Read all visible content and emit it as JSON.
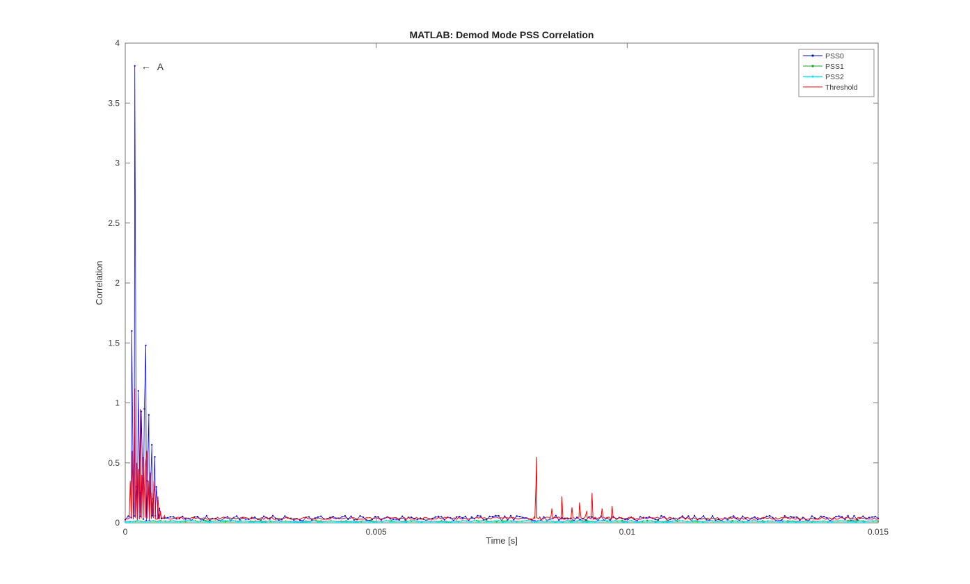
{
  "window": {
    "background": "#ffffff"
  },
  "chart_data": {
    "type": "line",
    "title": "MATLAB: Demod Mode PSS Correlation",
    "xlabel": "Time [s]",
    "ylabel": "Correlation",
    "xlim": [
      0,
      0.015
    ],
    "ylim": [
      0,
      4
    ],
    "xticks": [
      0,
      0.005,
      0.01,
      0.015
    ],
    "xtick_labels": [
      "0",
      "0.005",
      "0.01",
      "0.015"
    ],
    "yticks": [
      0,
      0.5,
      1,
      1.5,
      2,
      2.5,
      3,
      3.5,
      4
    ],
    "ytick_labels": [
      "0",
      "0.5",
      "1",
      "1.5",
      "2",
      "2.5",
      "3",
      "3.5",
      "4"
    ],
    "grid": false,
    "legend_position": "top-right",
    "colors": {
      "axis": "#767676",
      "tick_label": "#3b3b3b",
      "title": "#222222",
      "annotation": "#333333",
      "legend_border": "#8c8c8c"
    },
    "annotation": {
      "arrow_glyph": "←",
      "text": "A",
      "x": 0.00019,
      "y": 3.81
    },
    "series": [
      {
        "name": "PSS0",
        "color": "#0000ff",
        "line_width": 0.8,
        "marker": true,
        "noise": {
          "baseline": 0.015,
          "amplitude": 0.045,
          "step": 6e-05,
          "seed": 7
        },
        "spikes": [
          [
            0.00013,
            1.6
          ],
          [
            0.00016,
            0.25
          ],
          [
            0.00019,
            3.81
          ],
          [
            0.00022,
            0.3
          ],
          [
            0.00026,
            1.1
          ],
          [
            0.00029,
            0.25
          ],
          [
            0.00032,
            0.93
          ],
          [
            0.00035,
            0.3
          ],
          [
            0.00038,
            0.95
          ],
          [
            0.00041,
            1.48
          ],
          [
            0.00044,
            0.35
          ],
          [
            0.00047,
            0.9
          ],
          [
            0.0005,
            0.25
          ],
          [
            0.00053,
            0.65
          ],
          [
            0.00056,
            0.2
          ],
          [
            0.00059,
            0.55
          ],
          [
            0.00062,
            0.3
          ],
          [
            0.00068,
            0.12
          ]
        ]
      },
      {
        "name": "PSS1",
        "color": "#00b300",
        "line_width": 1,
        "marker": true,
        "noise": {
          "baseline": 0.01,
          "amplitude": 0.008,
          "step": 0.0001,
          "seed": 21
        },
        "spikes": []
      },
      {
        "name": "PSS2",
        "color": "#00eeee",
        "line_width": 1.6,
        "marker": true,
        "noise": {
          "baseline": 0.008,
          "amplitude": 0.01,
          "step": 8e-05,
          "seed": 33
        },
        "spikes": []
      },
      {
        "name": "Threshold",
        "color": "#ff0000",
        "line_width": 1,
        "marker": false,
        "noise": {
          "baseline": 0.028,
          "amplitude": 0.02,
          "step": 4e-05,
          "seed": 55
        },
        "spikes": [
          [
            0.0001,
            0.35
          ],
          [
            0.00014,
            0.6
          ],
          [
            0.00019,
            1.12
          ],
          [
            0.00023,
            0.5
          ],
          [
            0.00027,
            0.45
          ],
          [
            0.0003,
            0.95
          ],
          [
            0.00033,
            0.4
          ],
          [
            0.00036,
            0.55
          ],
          [
            0.0004,
            0.48
          ],
          [
            0.00043,
            0.6
          ],
          [
            0.00046,
            0.35
          ],
          [
            0.0005,
            0.42
          ],
          [
            0.00053,
            0.25
          ],
          [
            0.00057,
            0.35
          ],
          [
            0.0006,
            0.18
          ],
          [
            0.00065,
            0.22
          ],
          [
            0.0007,
            0.1
          ],
          [
            0.00078,
            0.06
          ],
          [
            0.00815,
            0.05
          ],
          [
            0.0082,
            0.55
          ],
          [
            0.00826,
            0.05
          ],
          [
            0.0085,
            0.12
          ],
          [
            0.0087,
            0.22
          ],
          [
            0.0089,
            0.13
          ],
          [
            0.00905,
            0.17
          ],
          [
            0.0092,
            0.1
          ],
          [
            0.0093,
            0.25
          ],
          [
            0.0095,
            0.12
          ],
          [
            0.0097,
            0.14
          ]
        ]
      }
    ]
  }
}
